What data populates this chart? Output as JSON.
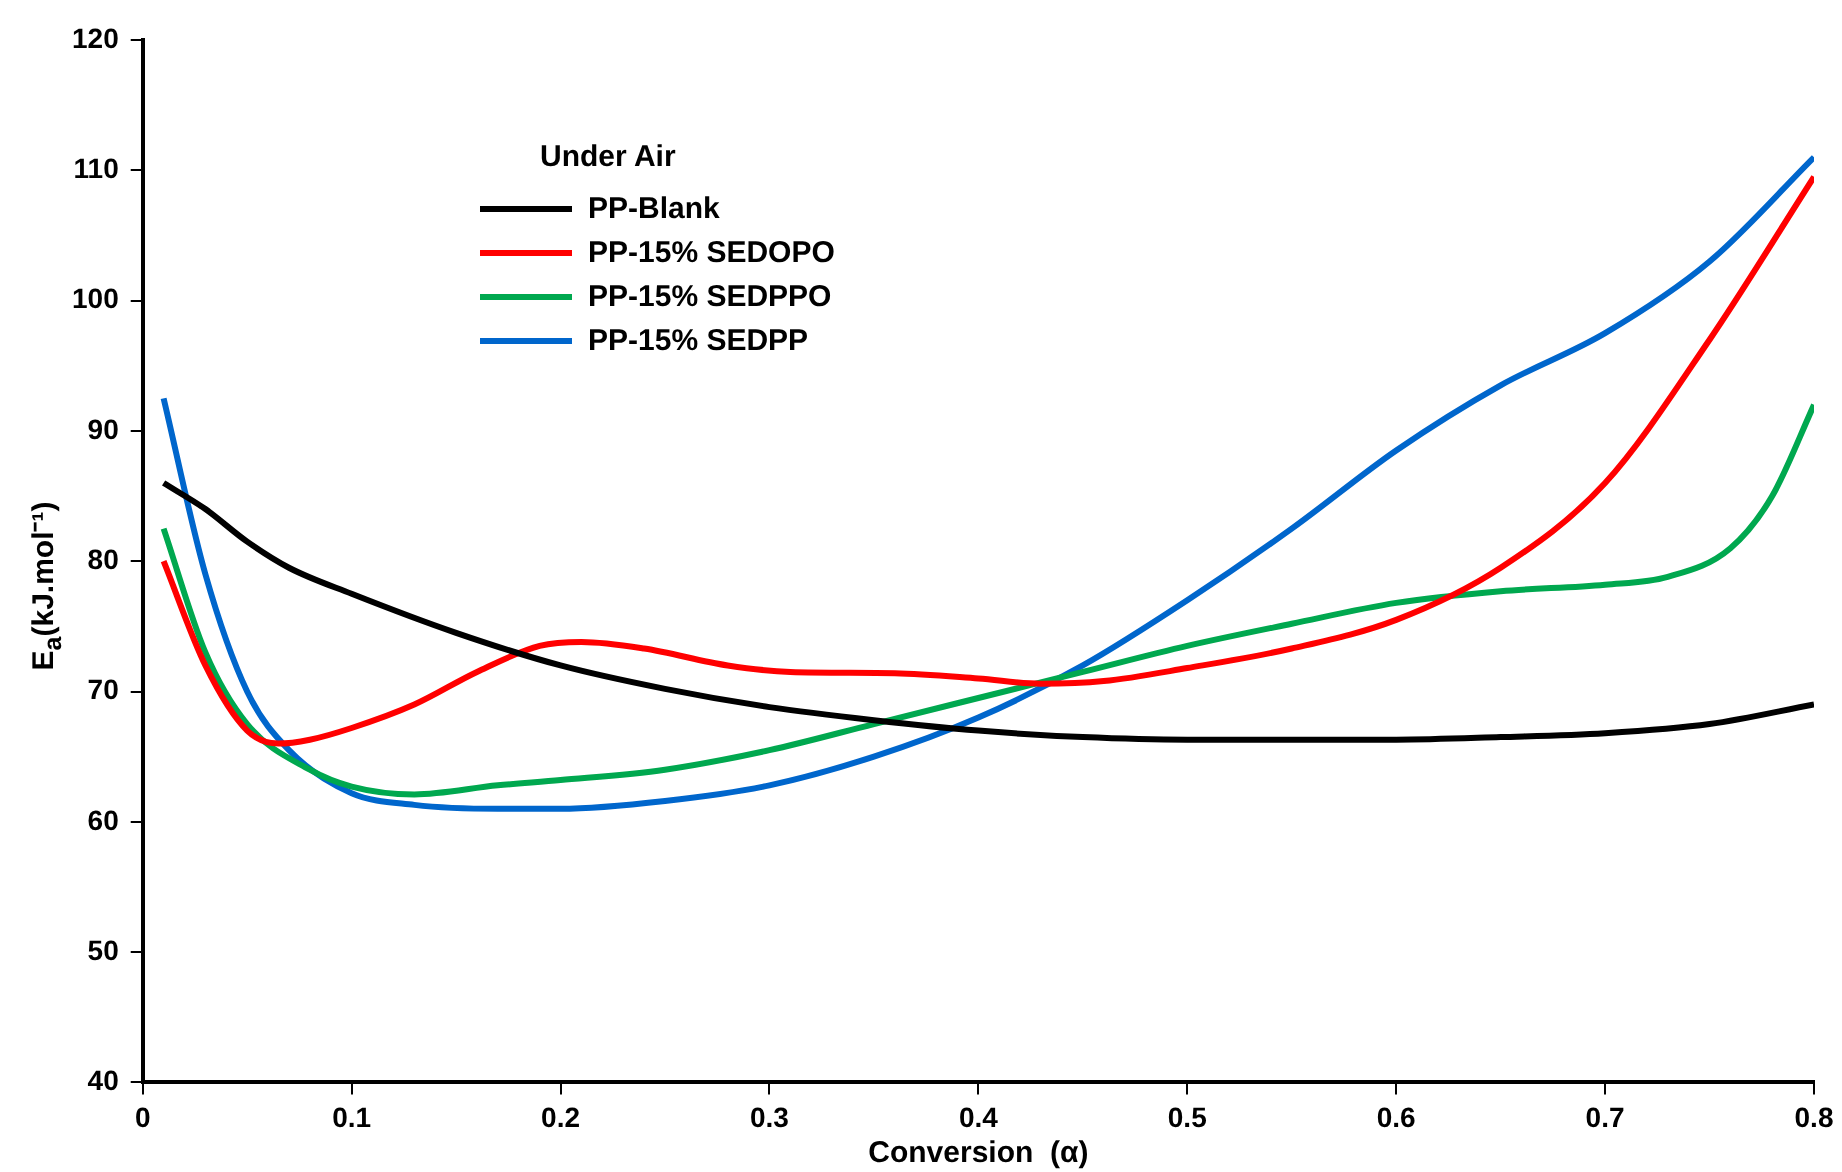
{
  "chart_data": {
    "type": "line",
    "xlabel": "Conversion  (α)",
    "ylabel": "E$_{a}$(kJ.mol⁻¹)",
    "legend_title": "Under Air",
    "legend": "top left",
    "grid": false,
    "marker": "none",
    "line_style": "solid",
    "xlim": [
      0,
      0.8
    ],
    "xticks": [
      0,
      0.1,
      0.2,
      0.3,
      0.4,
      0.5,
      0.6,
      0.7,
      0.8
    ],
    "ylim": [
      40,
      120
    ],
    "yticks": [
      40,
      50,
      60,
      70,
      80,
      90,
      100,
      110,
      120
    ],
    "series": [
      {
        "name": "PP-Blank",
        "color": "#000000",
        "x": [
          0.01,
          0.03,
          0.05,
          0.07,
          0.1,
          0.15,
          0.2,
          0.25,
          0.3,
          0.35,
          0.4,
          0.45,
          0.5,
          0.55,
          0.6,
          0.65,
          0.7,
          0.75,
          0.8
        ],
        "values": [
          86,
          84,
          81.5,
          79.5,
          77.5,
          74.5,
          72,
          70.2,
          68.8,
          67.8,
          67,
          66.5,
          66.3,
          66.3,
          66.3,
          66.5,
          66.8,
          67.5,
          69
        ]
      },
      {
        "name": "PP-15% SEDOPO",
        "color": "#ff0000",
        "x": [
          0.01,
          0.03,
          0.05,
          0.065,
          0.08,
          0.1,
          0.13,
          0.16,
          0.19,
          0.21,
          0.24,
          0.28,
          0.31,
          0.36,
          0.4,
          0.43,
          0.46,
          0.5,
          0.55,
          0.6,
          0.65,
          0.7,
          0.75,
          0.8
        ],
        "values": [
          80,
          72,
          67,
          66,
          66.3,
          67.2,
          69,
          71.5,
          73.5,
          73.8,
          73.3,
          72,
          71.5,
          71.4,
          71,
          70.6,
          70.8,
          71.8,
          73.3,
          75.5,
          79.5,
          86,
          97,
          109.5
        ]
      },
      {
        "name": "PP-15% SEDPPO",
        "color": "#00a84f",
        "x": [
          0.01,
          0.03,
          0.05,
          0.08,
          0.1,
          0.13,
          0.17,
          0.2,
          0.25,
          0.3,
          0.35,
          0.4,
          0.45,
          0.5,
          0.55,
          0.6,
          0.65,
          0.7,
          0.73,
          0.76,
          0.78,
          0.8
        ],
        "values": [
          82.5,
          73,
          67.5,
          64,
          62.7,
          62.1,
          62.8,
          63.2,
          64,
          65.5,
          67.5,
          69.5,
          71.5,
          73.5,
          75.2,
          76.8,
          77.7,
          78.2,
          78.8,
          81,
          85,
          92
        ]
      },
      {
        "name": "PP-15% SEDPP",
        "color": "#0066cc",
        "x": [
          0.01,
          0.03,
          0.05,
          0.07,
          0.1,
          0.13,
          0.17,
          0.2,
          0.25,
          0.3,
          0.35,
          0.4,
          0.45,
          0.5,
          0.55,
          0.6,
          0.65,
          0.7,
          0.75,
          0.8
        ],
        "values": [
          92.5,
          79,
          70,
          65.5,
          62.2,
          61.3,
          61,
          61,
          61.6,
          62.8,
          65,
          68,
          72,
          77,
          82.5,
          88.5,
          93.5,
          97.5,
          103,
          111
        ]
      }
    ]
  }
}
